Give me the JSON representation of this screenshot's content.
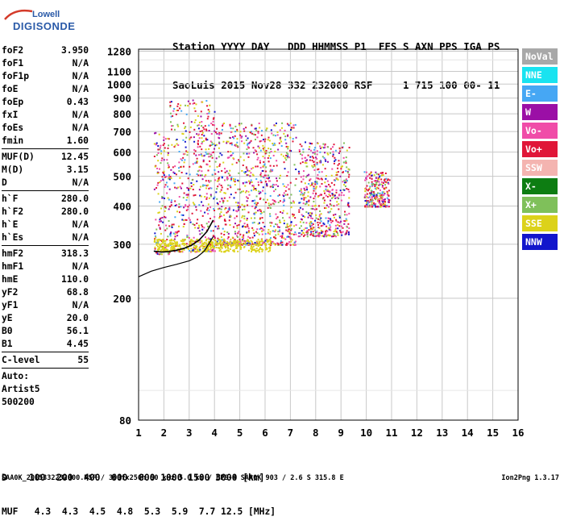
{
  "logo": {
    "line1": "Lowell",
    "line2": "DIGISONDE"
  },
  "header": {
    "line1": "Station YYYY DAY   DDD HHMMSS P1  FFS S AXN PPS IGA PS",
    "line2": "SaoLuis 2015 Nov28 332 232000 RSF     1 715 100 00- 11"
  },
  "params": [
    {
      "label": "foF2",
      "value": "3.950",
      "sep": false
    },
    {
      "label": "foF1",
      "value": "N/A",
      "sep": false
    },
    {
      "label": "foF1p",
      "value": "N/A",
      "sep": false
    },
    {
      "label": "foE",
      "value": "N/A",
      "sep": false
    },
    {
      "label": "foEp",
      "value": "0.43",
      "sep": false
    },
    {
      "label": "fxI",
      "value": "N/A",
      "sep": false
    },
    {
      "label": "foEs",
      "value": "N/A",
      "sep": false
    },
    {
      "label": "fmin",
      "value": "1.60",
      "sep": true
    },
    {
      "label": "MUF(D)",
      "value": "12.45",
      "sep": false
    },
    {
      "label": "M(D)",
      "value": "3.15",
      "sep": false
    },
    {
      "label": "D",
      "value": "N/A",
      "sep": true
    },
    {
      "label": "h`F",
      "value": "280.0",
      "sep": false
    },
    {
      "label": "h`F2",
      "value": "280.0",
      "sep": false
    },
    {
      "label": "h`E",
      "value": "N/A",
      "sep": false
    },
    {
      "label": "h`Es",
      "value": "N/A",
      "sep": true
    },
    {
      "label": "hmF2",
      "value": "318.3",
      "sep": false
    },
    {
      "label": "hmF1",
      "value": "N/A",
      "sep": false
    },
    {
      "label": "hmE",
      "value": "110.0",
      "sep": false
    },
    {
      "label": "yF2",
      "value": "68.8",
      "sep": false
    },
    {
      "label": "yF1",
      "value": "N/A",
      "sep": false
    },
    {
      "label": "yE",
      "value": "20.0",
      "sep": false
    },
    {
      "label": "B0",
      "value": "56.1",
      "sep": false
    },
    {
      "label": "B1",
      "value": "4.45",
      "sep": true
    },
    {
      "label": "C-level",
      "value": "55",
      "sep": true
    }
  ],
  "auto": {
    "line1": "Auto:",
    "line2": "Artist5",
    "line3": "500200"
  },
  "bottom": {
    "line1": "D    100  200  400  600  800 1000 1500 3000 [km]",
    "line2": "MUF   4.3  4.3  4.5  4.8  5.3  5.9  7.7 12.5 [MHz]"
  },
  "footer": "SAA0K_2015332232000.RSF / 300fx256h 50 kHz 5.0 km / DPS-4 SAA0K 903 / 2.6 S 315.8 E",
  "version": "Ion2Png 1.3.17",
  "legend": [
    {
      "label": "NoVal",
      "color": "#a8a8a8"
    },
    {
      "label": "NNE",
      "color": "#19e3f0"
    },
    {
      "label": "E-",
      "color": "#46a7f4"
    },
    {
      "label": "W",
      "color": "#9b0fa6"
    },
    {
      "label": "Vo-",
      "color": "#f04ca8"
    },
    {
      "label": "Vo+",
      "color": "#e01638"
    },
    {
      "label": "SSW",
      "color": "#f4b4b0"
    },
    {
      "label": "X-",
      "color": "#0d7d12"
    },
    {
      "label": "X+",
      "color": "#7fc05a"
    },
    {
      "label": "SSE",
      "color": "#dcd21a"
    },
    {
      "label": "NNW",
      "color": "#1216cc"
    }
  ],
  "chart_data": {
    "type": "scatter",
    "title": "",
    "xlabel": "",
    "ylabel": "",
    "xlim": [
      1,
      16
    ],
    "ylim": [
      80,
      1300
    ],
    "y_scale": "log",
    "x_ticks": [
      1,
      2,
      3,
      4,
      5,
      6,
      7,
      8,
      9,
      10,
      11,
      12,
      13,
      14,
      15,
      16
    ],
    "y_ticks": [
      80,
      200,
      300,
      400,
      500,
      600,
      700,
      800,
      900,
      1000,
      1100,
      1280
    ],
    "grid": true,
    "legend_position": "right",
    "trace_series": [
      {
        "name": "ionogram-profile",
        "x": [
          1.0,
          1.5,
          2.0,
          2.5,
          3.0,
          3.3,
          3.6,
          3.95
        ],
        "y": [
          235,
          245,
          252,
          258,
          265,
          272,
          285,
          318
        ]
      },
      {
        "name": "scaled-trace",
        "x": [
          1.6,
          1.9,
          2.2,
          2.5,
          2.8,
          3.1,
          3.4,
          3.7,
          3.95
        ],
        "y": [
          285,
          283,
          284,
          287,
          291,
          298,
          310,
          330,
          360
        ]
      }
    ],
    "echo_regions": [
      {
        "x": [
          1.6,
          2.2
        ],
        "y": [
          280,
          700
        ]
      },
      {
        "x": [
          2.2,
          4.0
        ],
        "y": [
          285,
          900
        ]
      },
      {
        "x": [
          4.0,
          7.2
        ],
        "y": [
          300,
          750
        ]
      },
      {
        "x": [
          7.3,
          9.3
        ],
        "y": [
          320,
          650
        ]
      },
      {
        "x": [
          9.9,
          10.9
        ],
        "y": [
          400,
          520
        ]
      }
    ]
  }
}
